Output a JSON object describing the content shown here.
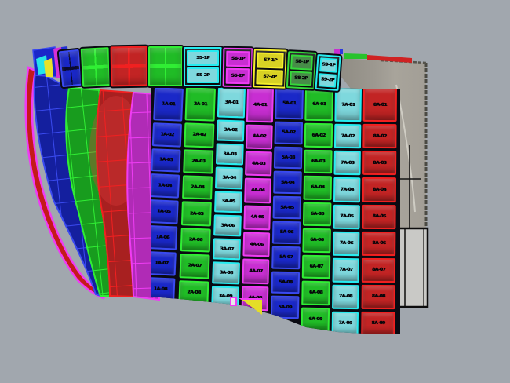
{
  "scene": {
    "title": "3D hull plating view",
    "description": "CAD viewport showing a ship hull section split into colored plates with ID labels"
  },
  "colors": {
    "background": "#a1a7ae",
    "seam": "#0a0a12",
    "label": "#06060a",
    "blue": {
      "body": "#1a28c8",
      "edge": "#3a4af0"
    },
    "green": {
      "body": "#20bc26",
      "edge": "#30ee34"
    },
    "cyan": {
      "body": "#7ed8dd",
      "edge": "#25ecf0"
    },
    "magenta": {
      "body": "#c82ed2",
      "edge": "#ef3cf4"
    },
    "red": {
      "body": "#c22424",
      "edge": "#f12020"
    },
    "yellow": {
      "body": "#d8d224",
      "edge": "#f4ee2c"
    },
    "olive": {
      "body": "#478c48",
      "edge": "#35d83a"
    },
    "transom_face": "#a8a49b",
    "transom_shade": "#8f8c83",
    "side_plate": "#c9c9c6"
  },
  "top_band": {
    "plates": [
      {
        "color": "blue",
        "type": "grid",
        "labels": []
      },
      {
        "color": "green",
        "type": "grid",
        "labels": []
      },
      {
        "color": "red",
        "type": "grid",
        "labels": []
      },
      {
        "color": "green",
        "type": "grid",
        "labels": []
      },
      {
        "color": "cyan",
        "type": "labeled",
        "labels": [
          "S5-1P",
          "S5-2P"
        ]
      },
      {
        "color": "magenta",
        "type": "labeled",
        "labels": [
          "S6-1P",
          "S6-2P"
        ]
      },
      {
        "color": "yellow",
        "type": "labeled",
        "labels": [
          "S7-1P",
          "S7-2P"
        ]
      },
      {
        "color": "olive",
        "type": "labeled",
        "labels": [
          "S8-1P",
          "S8-2P"
        ]
      },
      {
        "color": "cyan",
        "type": "labeled",
        "labels": [
          "S9-1P",
          "S9-2P"
        ]
      }
    ]
  },
  "hull_columns": [
    {
      "color": "blue",
      "labels": [
        "1A-01",
        "1A-02",
        "1A-03",
        "1A-04",
        "1A-05",
        "1A-06",
        "1A-07",
        "1A-08"
      ]
    },
    {
      "color": "green",
      "labels": [
        "2A-01",
        "2A-02",
        "2A-03",
        "2A-04",
        "2A-05",
        "2A-06",
        "2A-07",
        "2A-08"
      ]
    },
    {
      "color": "cyan",
      "labels": [
        "3A-01",
        "3A-02",
        "3A-03",
        "3A-04",
        "3A-05",
        "3A-06",
        "3A-07",
        "3A-08",
        "3A-09"
      ]
    },
    {
      "color": "magenta",
      "labels": [
        "4A-01",
        "4A-02",
        "4A-03",
        "4A-04",
        "4A-05",
        "4A-06",
        "4A-07",
        "4A-08"
      ]
    },
    {
      "color": "blue",
      "labels": [
        "5A-01",
        "5A-02",
        "5A-03",
        "5A-04",
        "5A-05",
        "5A-06",
        "5A-07",
        "5A-08",
        "5A-09"
      ]
    },
    {
      "color": "green",
      "labels": [
        "6A-01",
        "6A-02",
        "6A-03",
        "6A-04",
        "6A-05",
        "6A-06",
        "6A-07",
        "6A-08",
        "6A-09"
      ]
    },
    {
      "color": "cyan",
      "labels": [
        "7A-01",
        "7A-02",
        "7A-03",
        "7A-04",
        "7A-05",
        "7A-06",
        "7A-07",
        "7A-08",
        "7A-09"
      ]
    },
    {
      "color": "red",
      "labels": [
        "8A-01",
        "8A-02",
        "8A-03",
        "8A-04",
        "8A-05",
        "8A-06",
        "8A-07",
        "8A-08",
        "8A-09"
      ]
    }
  ],
  "bow": {
    "strakes": [
      "blue",
      "green",
      "red",
      "magenta"
    ]
  }
}
